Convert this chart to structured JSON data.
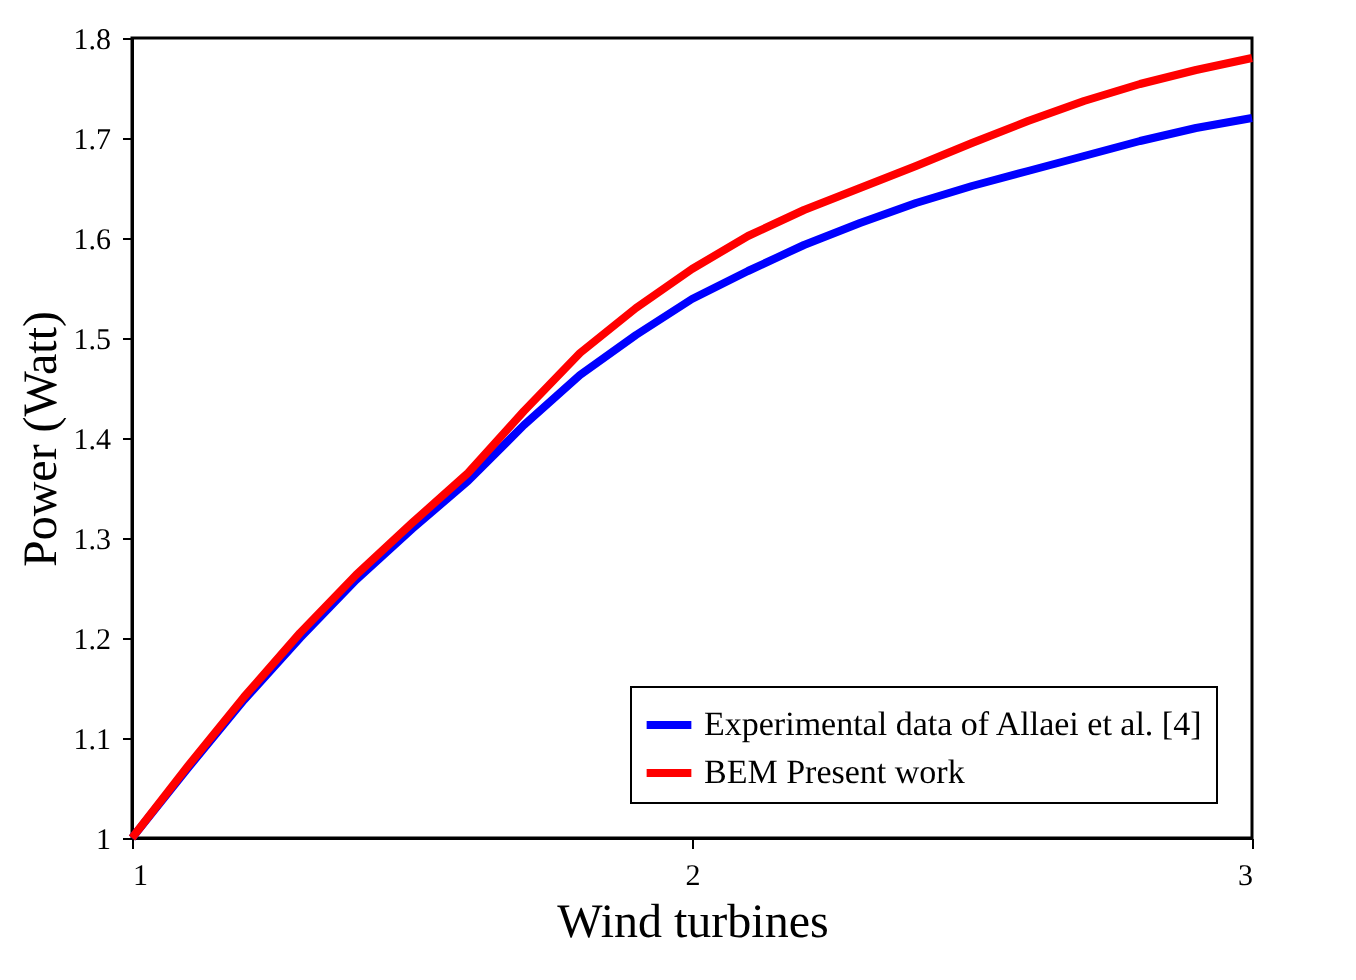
{
  "chart_data": {
    "type": "line",
    "xlabel": "Wind turbines",
    "ylabel": "Power (Watt)",
    "x": [
      1.0,
      1.1,
      1.2,
      1.3,
      1.4,
      1.5,
      1.6,
      1.7,
      1.8,
      1.9,
      2.0,
      2.1,
      2.2,
      2.3,
      2.4,
      2.5,
      2.6,
      2.7,
      2.8,
      2.9,
      3.0
    ],
    "series": [
      {
        "name": "Experimental data of Allaei et al. [4]",
        "color": "#0000ff",
        "values": [
          1.0,
          1.07,
          1.138,
          1.2,
          1.258,
          1.309,
          1.357,
          1.413,
          1.463,
          1.503,
          1.539,
          1.567,
          1.593,
          1.615,
          1.635,
          1.652,
          1.667,
          1.682,
          1.697,
          1.71,
          1.72
        ]
      },
      {
        "name": "BEM Present work",
        "color": "#ff0000",
        "values": [
          1.0,
          1.072,
          1.141,
          1.205,
          1.263,
          1.315,
          1.365,
          1.427,
          1.485,
          1.53,
          1.569,
          1.602,
          1.628,
          1.65,
          1.672,
          1.695,
          1.717,
          1.737,
          1.754,
          1.768,
          1.78
        ]
      }
    ],
    "xlim": [
      1,
      3
    ],
    "xticks": [
      1,
      2,
      3
    ],
    "ylim": [
      1,
      1.8
    ],
    "yticks": [
      1,
      1.1,
      1.2,
      1.3,
      1.4,
      1.5,
      1.6,
      1.7,
      1.8
    ],
    "grid": false,
    "legend": "bottom right",
    "marker": "none",
    "line_style": "solid"
  }
}
